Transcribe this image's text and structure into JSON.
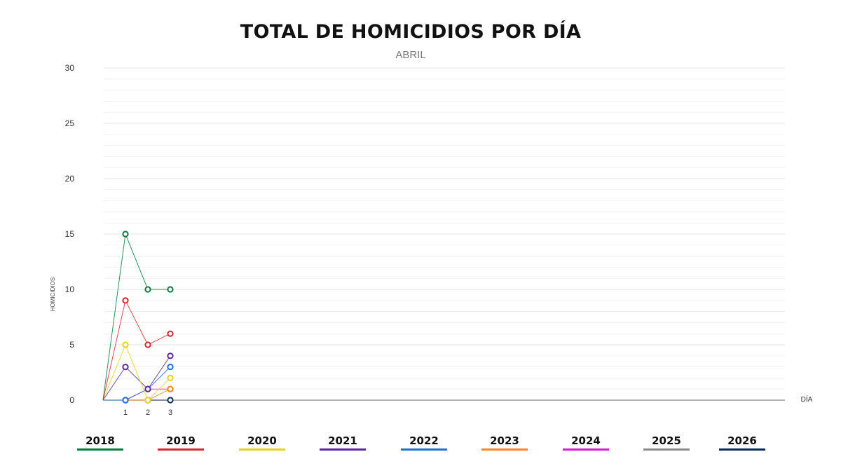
{
  "title": "TOTAL DE HOMICIDIOS POR DÍA",
  "subtitle": "ABRIL",
  "chart_data": {
    "type": "line",
    "title": "TOTAL DE HOMICIDIOS POR DÍA",
    "subtitle": "ABRIL",
    "xlabel": "DÍA",
    "ylabel": "HOMICIDIOS",
    "ylim": [
      0,
      30
    ],
    "y_ticks": [
      0,
      5,
      10,
      15,
      20,
      25,
      30
    ],
    "x_ticks": [
      1,
      2,
      3
    ],
    "grid": true,
    "legend_position": "bottom",
    "series": [
      {
        "name": "2018",
        "color": "#0b7a3e",
        "x": [
          0,
          1,
          2,
          3
        ],
        "values": [
          0,
          15,
          10,
          10
        ]
      },
      {
        "name": "2019",
        "color": "#d6282e",
        "x": [
          0,
          1,
          2,
          3
        ],
        "values": [
          0,
          9,
          5,
          6
        ]
      },
      {
        "name": "2020",
        "color": "#e8d21c",
        "x": [
          0,
          1,
          2,
          3
        ],
        "values": [
          0,
          5,
          0,
          2
        ]
      },
      {
        "name": "2021",
        "color": "#5b2a9e",
        "x": [
          0,
          1,
          2,
          3
        ],
        "values": [
          0,
          3,
          1,
          4
        ]
      },
      {
        "name": "2022",
        "color": "#1f6fd6",
        "x": [
          0,
          1,
          2,
          3
        ],
        "values": [
          0,
          0,
          1,
          3
        ]
      },
      {
        "name": "2023",
        "color": "#f08a1c",
        "x": [
          0,
          1,
          2,
          3
        ],
        "values": [
          0,
          0,
          0,
          1
        ]
      },
      {
        "name": "2024",
        "color": "#d61ad6",
        "x": [
          0,
          1,
          2,
          3
        ],
        "values": [
          0,
          0,
          1,
          1
        ]
      },
      {
        "name": "2025",
        "color": "#8a8a8a",
        "x": [],
        "values": []
      },
      {
        "name": "2026",
        "color": "#0a2a5c",
        "x": [
          0,
          1,
          2,
          3
        ],
        "values": [
          0,
          0,
          0,
          0
        ]
      }
    ]
  }
}
